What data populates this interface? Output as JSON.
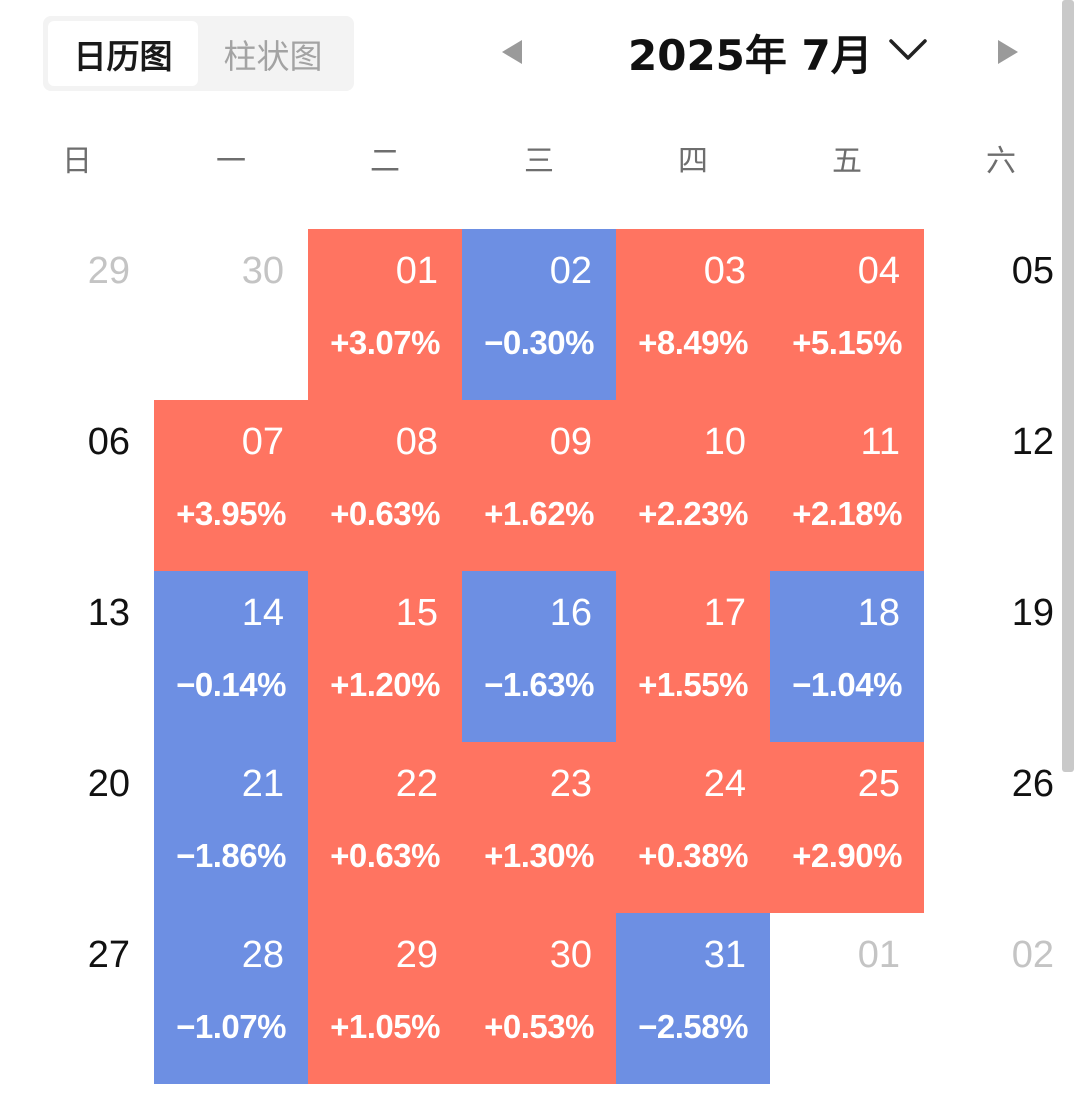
{
  "tabs": {
    "calendar": "日历图",
    "bar": "柱状图",
    "active": "calendar"
  },
  "header": {
    "month_label": "2025年 7月"
  },
  "icons": {
    "prev": "caret-left-icon",
    "next": "caret-right-icon",
    "dropdown": "chevron-down-icon"
  },
  "colors": {
    "up": "#ff7461",
    "down": "#6d8fe3",
    "muted_text": "#c4c4c4"
  },
  "weekdays": [
    "日",
    "一",
    "二",
    "三",
    "四",
    "五",
    "六"
  ],
  "weeks": [
    [
      {
        "day": "29",
        "muted": true
      },
      {
        "day": "30",
        "muted": true
      },
      {
        "day": "01",
        "pct": "+3.07%",
        "dir": "up"
      },
      {
        "day": "02",
        "pct": "−0.30%",
        "dir": "down"
      },
      {
        "day": "03",
        "pct": "+8.49%",
        "dir": "up"
      },
      {
        "day": "04",
        "pct": "+5.15%",
        "dir": "up"
      },
      {
        "day": "05"
      }
    ],
    [
      {
        "day": "06"
      },
      {
        "day": "07",
        "pct": "+3.95%",
        "dir": "up"
      },
      {
        "day": "08",
        "pct": "+0.63%",
        "dir": "up"
      },
      {
        "day": "09",
        "pct": "+1.62%",
        "dir": "up"
      },
      {
        "day": "10",
        "pct": "+2.23%",
        "dir": "up"
      },
      {
        "day": "11",
        "pct": "+2.18%",
        "dir": "up"
      },
      {
        "day": "12"
      }
    ],
    [
      {
        "day": "13"
      },
      {
        "day": "14",
        "pct": "−0.14%",
        "dir": "down"
      },
      {
        "day": "15",
        "pct": "+1.20%",
        "dir": "up"
      },
      {
        "day": "16",
        "pct": "−1.63%",
        "dir": "down"
      },
      {
        "day": "17",
        "pct": "+1.55%",
        "dir": "up"
      },
      {
        "day": "18",
        "pct": "−1.04%",
        "dir": "down"
      },
      {
        "day": "19"
      }
    ],
    [
      {
        "day": "20"
      },
      {
        "day": "21",
        "pct": "−1.86%",
        "dir": "down"
      },
      {
        "day": "22",
        "pct": "+0.63%",
        "dir": "up"
      },
      {
        "day": "23",
        "pct": "+1.30%",
        "dir": "up"
      },
      {
        "day": "24",
        "pct": "+0.38%",
        "dir": "up"
      },
      {
        "day": "25",
        "pct": "+2.90%",
        "dir": "up"
      },
      {
        "day": "26"
      }
    ],
    [
      {
        "day": "27"
      },
      {
        "day": "28",
        "pct": "−1.07%",
        "dir": "down"
      },
      {
        "day": "29",
        "pct": "+1.05%",
        "dir": "up"
      },
      {
        "day": "30",
        "pct": "+0.53%",
        "dir": "up"
      },
      {
        "day": "31",
        "pct": "−2.58%",
        "dir": "down"
      },
      {
        "day": "01",
        "muted": true
      },
      {
        "day": "02",
        "muted": true
      }
    ]
  ]
}
